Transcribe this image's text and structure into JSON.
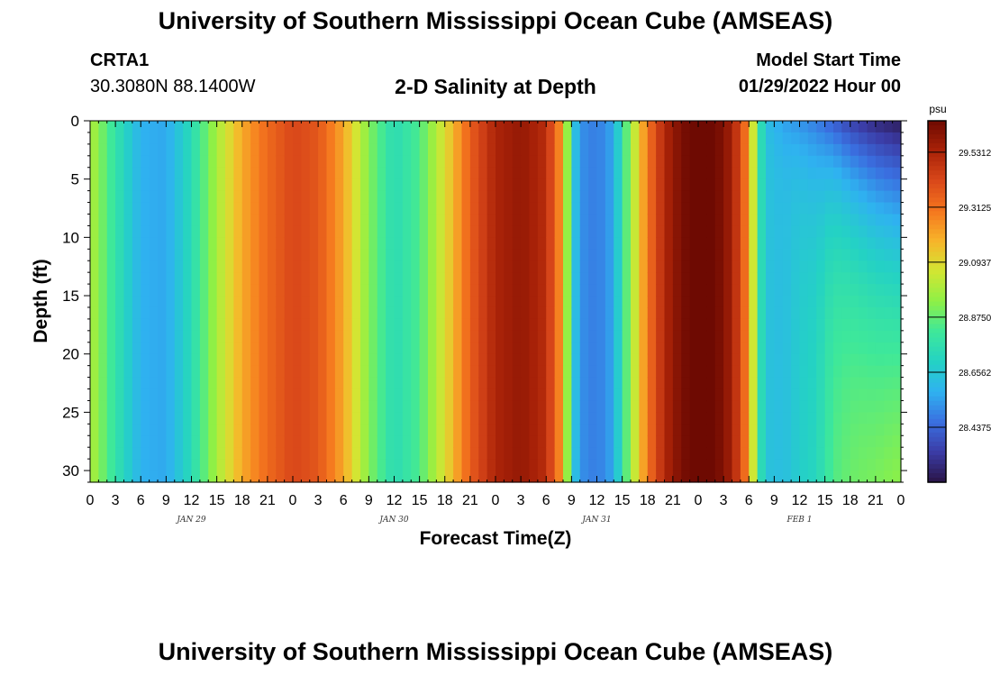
{
  "header": {
    "title": "University of Southern Mississippi Ocean Cube (AMSEAS)",
    "station": "CRTA1",
    "coords": "30.3080N  88.1400W",
    "subtitle": "2-D Salinity at Depth",
    "start_label": "Model Start Time",
    "start_value": "01/29/2022 Hour 00"
  },
  "footer": {
    "title": "University of Southern Mississippi Ocean Cube (AMSEAS)"
  },
  "chart_data": {
    "type": "heatmap",
    "title": "2-D Salinity at Depth",
    "xlabel": "Forecast Time(Z)",
    "ylabel": "Depth (ft)",
    "x_ticks": [
      "0",
      "3",
      "6",
      "9",
      "12",
      "15",
      "18",
      "21",
      "0",
      "3",
      "6",
      "9",
      "12",
      "15",
      "18",
      "21",
      "0",
      "3",
      "6",
      "9",
      "12",
      "15",
      "18",
      "21",
      "0",
      "3",
      "6",
      "9",
      "12",
      "15",
      "18",
      "21",
      "0"
    ],
    "x_range_hours": [
      0,
      96
    ],
    "date_labels": [
      {
        "hour": 12,
        "label": "JAN 29"
      },
      {
        "hour": 36,
        "label": "JAN 30"
      },
      {
        "hour": 60,
        "label": "JAN 31"
      },
      {
        "hour": 84,
        "label": "FEB 1"
      }
    ],
    "y_ticks": [
      0,
      5,
      10,
      15,
      20,
      25,
      30
    ],
    "ylim": [
      0,
      31
    ],
    "y_inverted": true,
    "colorbar": {
      "unit": "psu",
      "min": 28.2187,
      "max": 29.6562,
      "ticks": [
        "29.5312",
        "29.3125",
        "29.0937",
        "28.8750",
        "28.6562",
        "28.4375"
      ],
      "colors": [
        "#2a1446",
        "#3b3ca6",
        "#3a6fe0",
        "#2fb2f0",
        "#24d2c4",
        "#3ee89a",
        "#8ef046",
        "#d2e633",
        "#f7b52a",
        "#f5761e",
        "#d9481a",
        "#a92208",
        "#6e0a02"
      ]
    },
    "surface_salinity_psu": [
      [
        0,
        29.0
      ],
      [
        3,
        28.78
      ],
      [
        6,
        28.58
      ],
      [
        9,
        28.56
      ],
      [
        12,
        28.74
      ],
      [
        15,
        28.98
      ],
      [
        18,
        29.2
      ],
      [
        21,
        29.33
      ],
      [
        24,
        29.42
      ],
      [
        27,
        29.38
      ],
      [
        30,
        29.2
      ],
      [
        33,
        28.92
      ],
      [
        36,
        28.74
      ],
      [
        39,
        28.84
      ],
      [
        42,
        29.08
      ],
      [
        45,
        29.36
      ],
      [
        48,
        29.53
      ],
      [
        51,
        29.58
      ],
      [
        54,
        29.5
      ],
      [
        56,
        29.2
      ],
      [
        57,
        28.7
      ],
      [
        58,
        28.52
      ],
      [
        60,
        28.48
      ],
      [
        62,
        28.56
      ],
      [
        63,
        28.78
      ],
      [
        64,
        28.95
      ],
      [
        66,
        29.3
      ],
      [
        68,
        29.52
      ],
      [
        70,
        29.63
      ],
      [
        72,
        29.68
      ],
      [
        74,
        29.66
      ],
      [
        76,
        29.55
      ],
      [
        78,
        29.25
      ],
      [
        79,
        28.85
      ],
      [
        80,
        28.62
      ],
      [
        82,
        28.55
      ],
      [
        84,
        28.52
      ],
      [
        86,
        28.48
      ],
      [
        88,
        28.42
      ],
      [
        90,
        28.35
      ],
      [
        93,
        28.28
      ],
      [
        96,
        28.24
      ]
    ],
    "bottom_salinity_psu": [
      [
        80,
        28.64
      ],
      [
        82,
        28.62
      ],
      [
        84,
        28.68
      ],
      [
        86,
        28.72
      ],
      [
        88,
        28.86
      ],
      [
        90,
        28.92
      ],
      [
        93,
        28.98
      ],
      [
        96,
        29.06
      ]
    ]
  }
}
